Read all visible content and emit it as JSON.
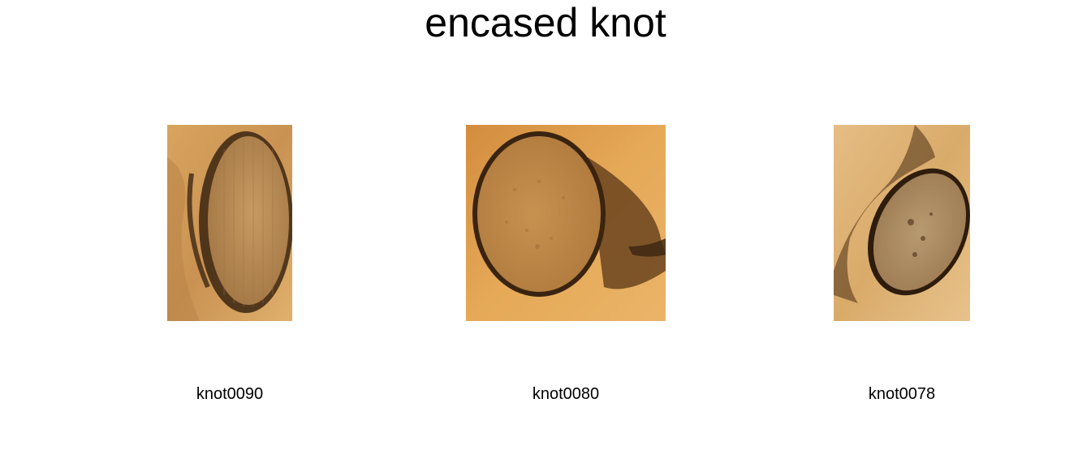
{
  "title": "encased knot",
  "samples": [
    {
      "label": "knot0090"
    },
    {
      "label": "knot0080"
    },
    {
      "label": "knot0078"
    }
  ],
  "colors": {
    "background": "#ffffff",
    "wood_light": "#e3b36f",
    "wood_mid": "#c98f4a",
    "knot_ring": "#3a2410",
    "knot_fill": "#b99060"
  }
}
